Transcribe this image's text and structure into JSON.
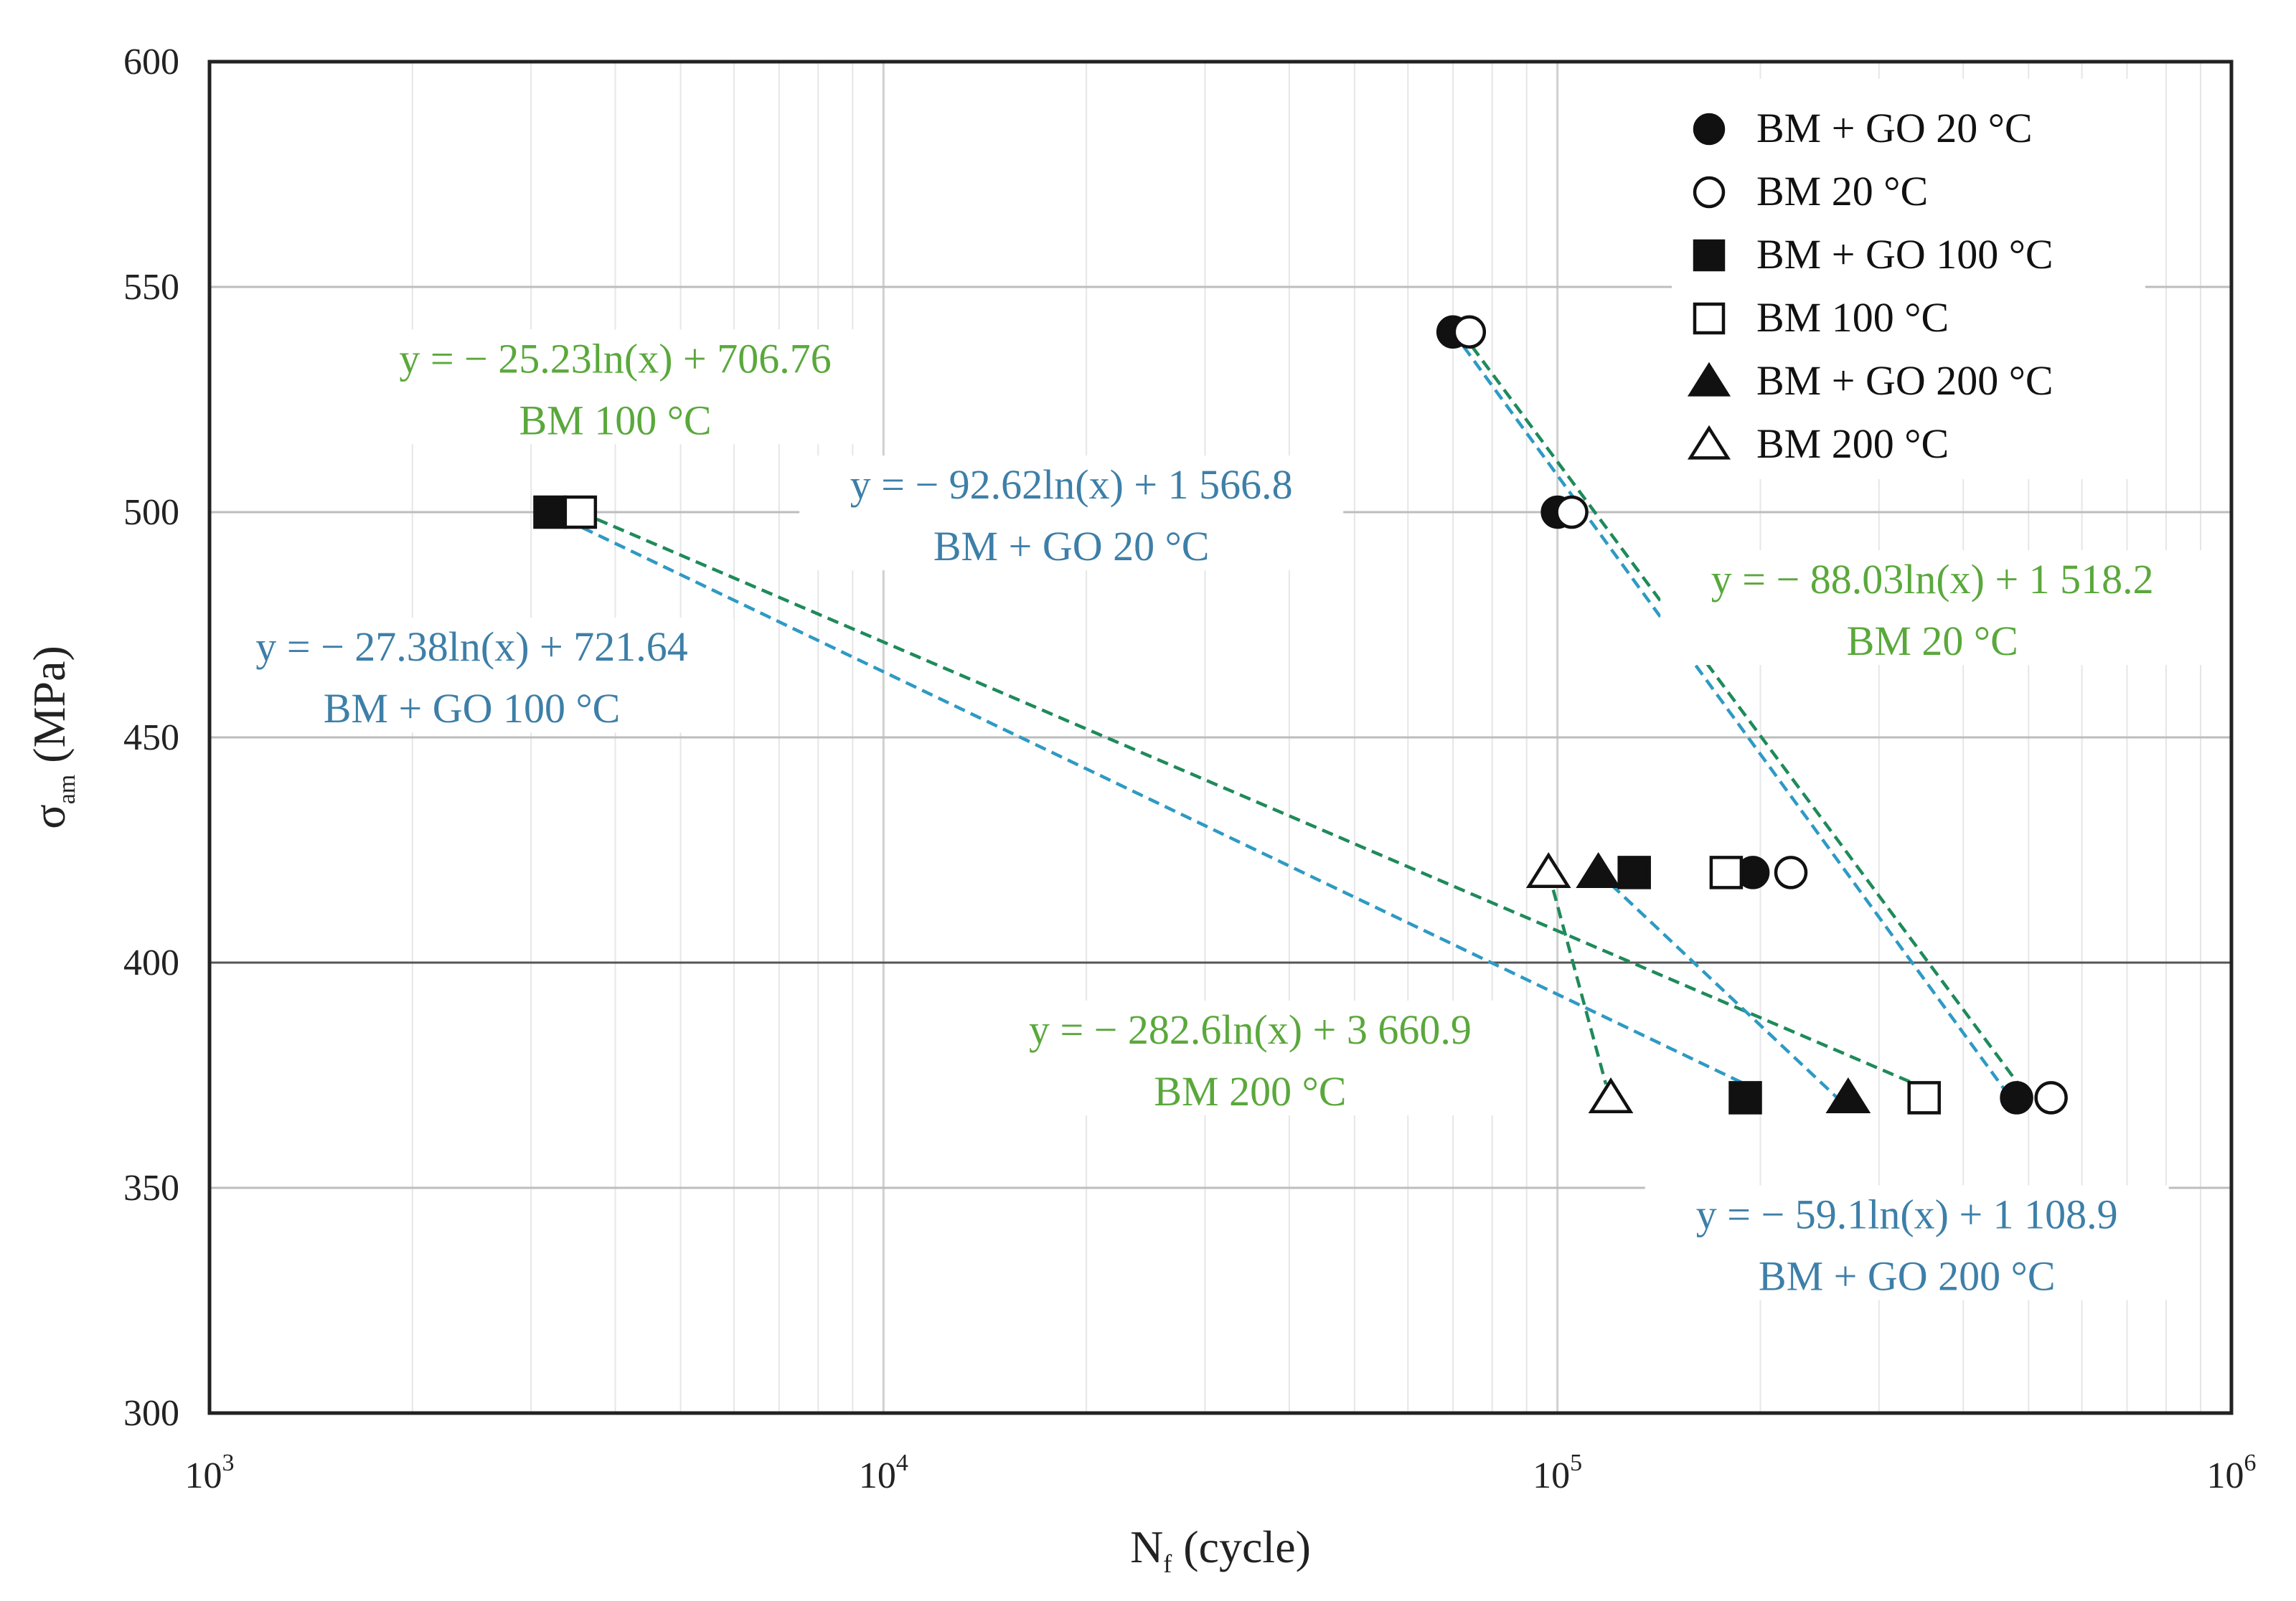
{
  "chart_data": {
    "type": "scatter",
    "title": "",
    "xlabel": "N",
    "xlabel_sub": "f",
    "xlabel_suffix": " (cycle)",
    "ylabel": "σ",
    "ylabel_sub": "am",
    "ylabel_suffix": "  (MPa)",
    "xscale": "log",
    "xlim": [
      1000,
      1000000
    ],
    "ylim": [
      300,
      600
    ],
    "x_ticks": [
      {
        "value": 1000,
        "base": "10",
        "exp": "3"
      },
      {
        "value": 10000,
        "base": "10",
        "exp": "4"
      },
      {
        "value": 100000,
        "base": "10",
        "exp": "5"
      },
      {
        "value": 1000000,
        "base": "10",
        "exp": "6"
      }
    ],
    "y_ticks": [
      "300",
      "350",
      "400",
      "450",
      "500",
      "550",
      "600"
    ],
    "legend_position": "top-right",
    "series": [
      {
        "name": "BM + GO  20 °C",
        "marker": "circle",
        "filled": true,
        "color": "#111111",
        "points": [
          [
            70000,
            540
          ],
          [
            100000,
            500
          ],
          [
            195000,
            420
          ],
          [
            480000,
            370
          ]
        ]
      },
      {
        "name": "BM  20 °C",
        "marker": "circle",
        "filled": false,
        "color": "#111111",
        "points": [
          [
            74000,
            540
          ],
          [
            105000,
            500
          ],
          [
            222000,
            420
          ],
          [
            540000,
            370
          ]
        ]
      },
      {
        "name": "BM + GO  100 °C",
        "marker": "square",
        "filled": true,
        "color": "#111111",
        "points": [
          [
            3200,
            500
          ],
          [
            130000,
            420
          ],
          [
            190000,
            370
          ]
        ]
      },
      {
        "name": "BM  100 °C",
        "marker": "square",
        "filled": false,
        "color": "#111111",
        "points": [
          [
            3550,
            500
          ],
          [
            178000,
            420
          ],
          [
            350000,
            370
          ]
        ]
      },
      {
        "name": "BM + GO  200 °C",
        "marker": "triangle",
        "filled": true,
        "color": "#111111",
        "points": [
          [
            115000,
            420
          ],
          [
            270000,
            370
          ]
        ]
      },
      {
        "name": "BM  200 °C",
        "marker": "triangle",
        "filled": false,
        "color": "#111111",
        "points": [
          [
            97000,
            420
          ],
          [
            120000,
            370
          ]
        ]
      }
    ],
    "trendlines": [
      {
        "series": "BM + GO  20 °C",
        "color": "#2e9ac4",
        "from": [
          70000,
          540
        ],
        "to": [
          470000,
          370
        ]
      },
      {
        "series": "BM  20 °C",
        "color": "#1f8a5a",
        "from": [
          72000,
          540
        ],
        "to": [
          500000,
          370
        ]
      },
      {
        "series": "BM + GO  100 °C",
        "color": "#2e9ac4",
        "from": [
          3200,
          500
        ],
        "to": [
          190000,
          373
        ]
      },
      {
        "series": "BM  100 °C",
        "color": "#1f8a5a",
        "from": [
          3550,
          500
        ],
        "to": [
          340000,
          373
        ]
      },
      {
        "series": "BM + GO  200 °C",
        "color": "#2e9ac4",
        "from": [
          115000,
          420
        ],
        "to": [
          260000,
          370
        ]
      },
      {
        "series": "BM  200 °C",
        "color": "#1f8a5a",
        "from": [
          97000,
          420
        ],
        "to": [
          118000,
          373
        ]
      }
    ],
    "annotations": [
      {
        "line1": "y = − 25.23ln(x) + 706.76",
        "line2": "BM   100 °C",
        "color": "#5aa83c",
        "x": 4000,
        "y": 531
      },
      {
        "line1": "y = − 92.62ln(x) + 1 566.8",
        "line2": "BM + GO  20 °C",
        "color": "#3d7fa8",
        "x": 19000,
        "y": 503
      },
      {
        "line1": "y = − 27.38ln(x) + 721.64",
        "line2": "BM + GO  100 °C",
        "color": "#3d7fa8",
        "x": 2450,
        "y": 467
      },
      {
        "line1": "y = − 88.03ln(x) + 1 518.2",
        "line2": "BM  20 °C",
        "color": "#5aa83c",
        "x": 360000,
        "y": 482
      },
      {
        "line1": "y = − 282.6ln(x) + 3 660.9",
        "line2": "BM  200 °C",
        "color": "#5aa83c",
        "x": 35000,
        "y": 382
      },
      {
        "line1": "y = − 59.1ln(x) + 1 108.9",
        "line2": "BM + GO  200 °C",
        "color": "#3d7fa8",
        "x": 330000,
        "y": 341
      }
    ]
  }
}
